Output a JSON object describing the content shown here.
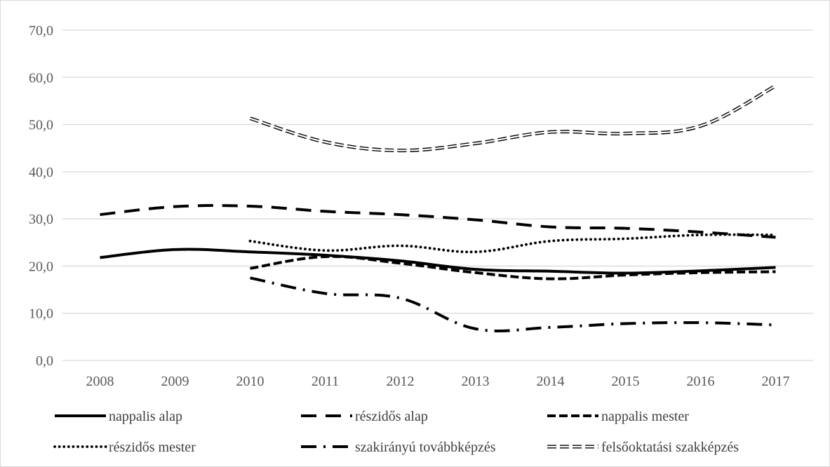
{
  "chart_data": {
    "type": "line",
    "title": "",
    "xlabel": "",
    "ylabel": "",
    "categories": [
      "2008",
      "2009",
      "2010",
      "2011",
      "2012",
      "2013",
      "2014",
      "2015",
      "2016",
      "2017"
    ],
    "ylim": [
      0,
      70
    ],
    "yticks": [
      "0,0",
      "10,0",
      "20,0",
      "30,0",
      "40,0",
      "50,0",
      "60,0",
      "70,0"
    ],
    "grid": "horizontal",
    "legend_position": "bottom",
    "series": [
      {
        "name": "nappalis alap",
        "style": "solid",
        "color": "#000000",
        "values": [
          21.8,
          23.5,
          23.0,
          22.3,
          21.1,
          19.3,
          18.9,
          18.5,
          19.0,
          19.7
        ]
      },
      {
        "name": "részidős alap",
        "style": "long-dash",
        "color": "#000000",
        "values": [
          30.9,
          32.6,
          32.7,
          31.6,
          30.9,
          29.8,
          28.3,
          28.0,
          27.2,
          26.1
        ]
      },
      {
        "name": "nappalis mester",
        "style": "dash",
        "color": "#000000",
        "values": [
          null,
          null,
          19.5,
          22.0,
          20.6,
          18.6,
          17.3,
          18.1,
          18.6,
          18.8
        ]
      },
      {
        "name": "részidős mester",
        "style": "dot",
        "color": "#000000",
        "values": [
          null,
          null,
          25.3,
          23.3,
          24.3,
          23.0,
          25.3,
          25.8,
          26.6,
          26.6
        ]
      },
      {
        "name": "szakirányú továbbképzés",
        "style": "dash-dot",
        "color": "#000000",
        "values": [
          null,
          null,
          17.5,
          14.2,
          13.2,
          6.7,
          7.0,
          7.8,
          8.0,
          7.5
        ]
      },
      {
        "name": "felsőoktatási szakképzés",
        "style": "double",
        "color": "#000000",
        "values": [
          null,
          null,
          51.3,
          46.3,
          44.5,
          46.0,
          48.4,
          48.1,
          49.7,
          58.2
        ]
      }
    ]
  }
}
